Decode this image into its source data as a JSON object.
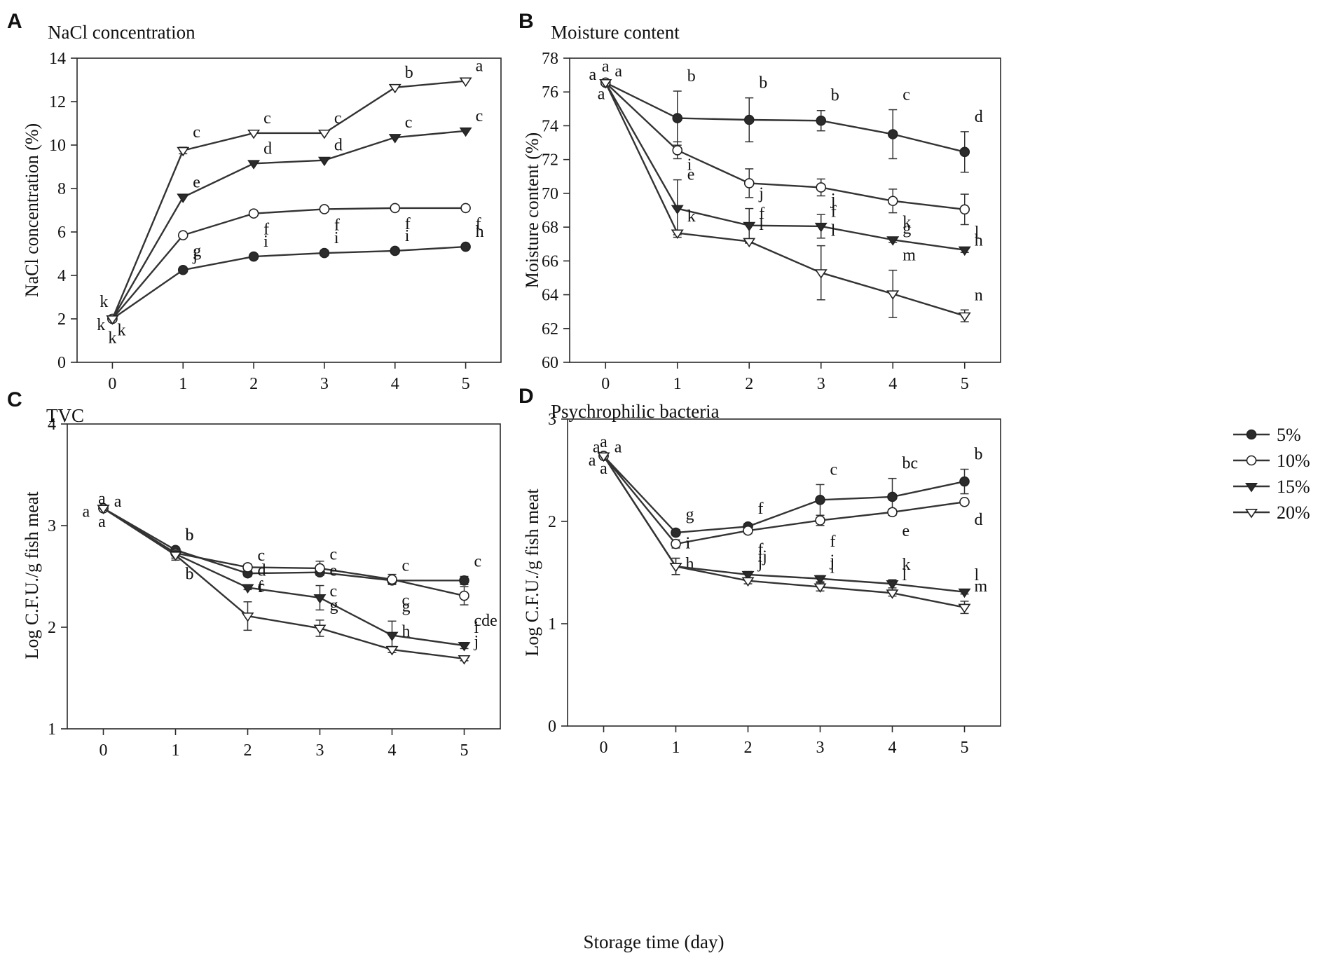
{
  "figure": {
    "shared_xlabel": "Storage time (day)",
    "legend": [
      {
        "label": "5%",
        "marker": "circle",
        "filled": true
      },
      {
        "label": "10%",
        "marker": "circle",
        "filled": false
      },
      {
        "label": "15%",
        "marker": "triangle-down",
        "filled": true
      },
      {
        "label": "20%",
        "marker": "triangle-down",
        "filled": false
      }
    ],
    "colors": {
      "line": "#333333",
      "filled_marker": "#2b2b2b",
      "open_marker": "#ffffff"
    }
  },
  "chart_data": [
    {
      "panel": "A",
      "type": "line",
      "title": "NaCl concentration",
      "xlabel": "",
      "ylabel": "NaCl concentration (%)",
      "x": [
        0,
        1,
        2,
        3,
        4,
        5
      ],
      "xlim": [
        -0.5,
        5.5
      ],
      "ylim": [
        0,
        14
      ],
      "yticks": [
        0,
        2,
        4,
        6,
        8,
        10,
        12,
        14
      ],
      "series": [
        {
          "name": "5%",
          "values": [
            2.0,
            4.25,
            4.87,
            5.03,
            5.13,
            5.32
          ],
          "err": [
            0,
            0,
            0,
            0,
            0,
            0
          ],
          "labels": [
            "",
            "j",
            "i",
            "i",
            "i",
            "h"
          ]
        },
        {
          "name": "10%",
          "values": [
            2.0,
            5.85,
            6.85,
            7.05,
            7.1,
            7.1
          ],
          "err": [
            0,
            0,
            0,
            0,
            0,
            0
          ],
          "labels": [
            "",
            "g",
            "f",
            "f",
            "f",
            "f"
          ]
        },
        {
          "name": "15%",
          "values": [
            2.0,
            7.6,
            9.15,
            9.3,
            10.35,
            10.65
          ],
          "err": [
            0,
            0,
            0,
            0,
            0,
            0
          ],
          "labels": [
            "",
            "e",
            "d",
            "d",
            "c",
            "c"
          ]
        },
        {
          "name": "20%",
          "values": [
            2.0,
            9.75,
            10.55,
            10.55,
            12.65,
            12.95
          ],
          "err": [
            0,
            0.15,
            0,
            0,
            0,
            0
          ],
          "labels": [
            "",
            "c",
            "c",
            "c",
            "b",
            "a"
          ]
        }
      ],
      "annotations": [
        {
          "text": "k",
          "x": -0.12,
          "y": 2.8
        },
        {
          "text": "k",
          "x": -0.16,
          "y": 1.75
        },
        {
          "text": "k",
          "x": 0.0,
          "y": 1.15
        },
        {
          "text": "k",
          "x": 0.13,
          "y": 1.5
        }
      ]
    },
    {
      "panel": "B",
      "type": "line",
      "title": "Moisture content",
      "xlabel": "",
      "ylabel": "Moisture content (%)",
      "x": [
        0,
        1,
        2,
        3,
        4,
        5
      ],
      "xlim": [
        -0.5,
        5.5
      ],
      "ylim": [
        60,
        78
      ],
      "yticks": [
        60,
        62,
        64,
        66,
        68,
        70,
        72,
        74,
        76,
        78
      ],
      "series": [
        {
          "name": "5%",
          "values": [
            76.55,
            74.45,
            74.35,
            74.3,
            73.5,
            72.45
          ],
          "err": [
            0,
            1.6,
            1.3,
            0.6,
            1.45,
            1.2
          ],
          "labels": [
            "",
            "b",
            "b",
            "b",
            "c",
            "d"
          ]
        },
        {
          "name": "10%",
          "values": [
            76.55,
            72.55,
            70.6,
            70.35,
            69.55,
            69.05
          ],
          "err": [
            0,
            0.5,
            0.85,
            0.5,
            0.7,
            0.9
          ],
          "labels": [
            "",
            "e",
            "f",
            "f",
            "g",
            "h"
          ]
        },
        {
          "name": "15%",
          "values": [
            76.55,
            69.1,
            68.1,
            68.05,
            67.25,
            66.65
          ],
          "err": [
            0,
            1.7,
            1.0,
            0.7,
            0.15,
            0.15
          ],
          "labels": [
            "",
            "i",
            "j",
            "j",
            "k",
            "l"
          ]
        },
        {
          "name": "20%",
          "values": [
            76.55,
            67.65,
            67.15,
            65.3,
            64.05,
            62.75
          ],
          "err": [
            0,
            0.1,
            0.1,
            1.6,
            1.4,
            0.35
          ],
          "labels": [
            "",
            "k",
            "l",
            "l",
            "m",
            "n"
          ]
        }
      ],
      "annotations": [
        {
          "text": "a",
          "x": -0.18,
          "y": 77.05
        },
        {
          "text": "a",
          "x": 0.0,
          "y": 77.55
        },
        {
          "text": "a",
          "x": 0.18,
          "y": 77.25
        },
        {
          "text": "a",
          "x": -0.06,
          "y": 75.9
        }
      ]
    },
    {
      "panel": "C",
      "type": "line",
      "title": "TVC",
      "xlabel": "",
      "ylabel": "Log C.F.U./g fish meat",
      "x": [
        0,
        1,
        2,
        3,
        4,
        5
      ],
      "xlim": [
        -0.5,
        5.5
      ],
      "ylim": [
        1,
        4
      ],
      "yticks": [
        1,
        2,
        3,
        4
      ],
      "series": [
        {
          "name": "5%",
          "values": [
            3.17,
            2.76,
            2.53,
            2.54,
            2.46,
            2.46
          ],
          "err": [
            0,
            0,
            0.03,
            0.03,
            0,
            0.04
          ],
          "labels": [
            "",
            "b",
            "c",
            "c",
            "c",
            "c"
          ]
        },
        {
          "name": "10%",
          "values": [
            3.17,
            2.73,
            2.59,
            2.58,
            2.47,
            2.31
          ],
          "err": [
            0,
            0.05,
            0.03,
            0.07,
            0.05,
            0.09
          ],
          "labels": [
            "",
            "b",
            "c",
            "c",
            "c",
            "cde"
          ]
        },
        {
          "name": "15%",
          "values": [
            3.17,
            2.72,
            2.39,
            2.29,
            1.92,
            1.82
          ],
          "err": [
            0,
            0.04,
            0.02,
            0.12,
            0.14,
            0.03
          ],
          "labels": [
            "",
            "b",
            "d",
            "e",
            "g",
            "i"
          ]
        },
        {
          "name": "20%",
          "values": [
            3.17,
            2.71,
            2.11,
            1.99,
            1.78,
            1.69
          ],
          "err": [
            0,
            0.05,
            0.14,
            0.08,
            0.03,
            0.02
          ],
          "labels": [
            "",
            "b",
            "f",
            "g",
            "h",
            "j"
          ]
        }
      ],
      "annotations": [
        {
          "text": "a",
          "x": -0.24,
          "y": 3.14
        },
        {
          "text": "a",
          "x": -0.02,
          "y": 3.27
        },
        {
          "text": "a",
          "x": 0.2,
          "y": 3.24
        },
        {
          "text": "a",
          "x": -0.02,
          "y": 3.04
        }
      ]
    },
    {
      "panel": "D",
      "type": "line",
      "title": "Psychrophilic bacteria",
      "xlabel": "",
      "ylabel": "Log C.F.U./g fish meat",
      "x": [
        0,
        1,
        2,
        3,
        4,
        5
      ],
      "xlim": [
        -0.5,
        5.5
      ],
      "ylim": [
        0,
        3
      ],
      "yticks": [
        0,
        1,
        2,
        3
      ],
      "series": [
        {
          "name": "5%",
          "values": [
            2.64,
            1.89,
            1.95,
            2.21,
            2.24,
            2.39
          ],
          "err": [
            0,
            0.03,
            0.03,
            0.15,
            0.18,
            0.12
          ],
          "labels": [
            "",
            "g",
            "f",
            "c",
            "bc",
            "b"
          ]
        },
        {
          "name": "10%",
          "values": [
            2.64,
            1.78,
            1.91,
            2.01,
            2.09,
            2.19
          ],
          "err": [
            0,
            0.04,
            0.03,
            0.05,
            0.03,
            0.02
          ],
          "labels": [
            "",
            "h",
            "f",
            "f",
            "e",
            "d"
          ]
        },
        {
          "name": "15%",
          "values": [
            2.64,
            1.56,
            1.48,
            1.44,
            1.39,
            1.31
          ],
          "err": [
            0,
            0.08,
            0.03,
            0.03,
            0.04,
            0.02
          ],
          "labels": [
            "",
            "i",
            "ij",
            "j",
            "k",
            "l"
          ]
        },
        {
          "name": "20%",
          "values": [
            2.64,
            1.56,
            1.42,
            1.36,
            1.3,
            1.16
          ],
          "err": [
            0,
            0.08,
            0.03,
            0.04,
            0.03,
            0.06
          ],
          "labels": [
            "",
            "i",
            "j",
            "l",
            "l",
            "m"
          ]
        }
      ],
      "annotations": [
        {
          "text": "a",
          "x": -0.1,
          "y": 2.73
        },
        {
          "text": "a",
          "x": 0.0,
          "y": 2.78
        },
        {
          "text": "a",
          "x": 0.2,
          "y": 2.73
        },
        {
          "text": "a",
          "x": -0.16,
          "y": 2.6
        },
        {
          "text": "a",
          "x": 0.0,
          "y": 2.52
        }
      ]
    }
  ]
}
